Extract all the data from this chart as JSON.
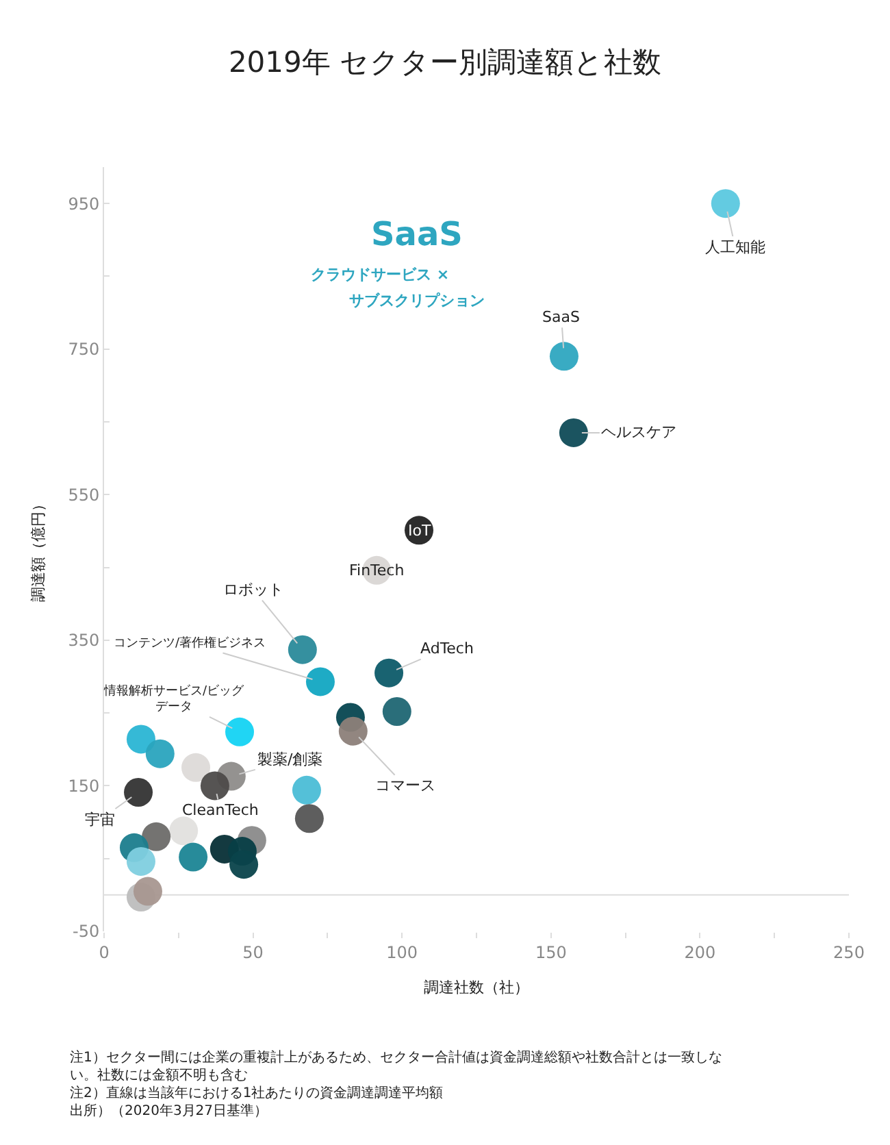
{
  "chart_data": {
    "type": "scatter",
    "title": "2019年 セクター別調達額と社数",
    "xlabel": "調達社数（社）",
    "ylabel": "調達額（億円）",
    "x": [
      208.6,
      154.4,
      157.6,
      105.7,
      91.5,
      66.6,
      72.6,
      95.6,
      98.3,
      82.7,
      83.6,
      45.5,
      12.4,
      18.8,
      30.8,
      42.7,
      37.2,
      68,
      11.5,
      68.9,
      26.7,
      17.5,
      49.6,
      10.1,
      40.4,
      46.4,
      29.9,
      12.4,
      46.9,
      14.7,
      12.4
    ],
    "values": [
      950,
      740,
      635,
      501,
      446,
      337,
      293,
      305,
      252,
      244,
      225,
      224,
      214,
      194,
      175,
      163,
      150,
      144,
      141,
      105,
      88,
      80,
      75,
      65,
      63,
      60,
      52,
      46,
      42,
      5,
      -3
    ],
    "colors": [
      "#5bc8df",
      "#2ea6c0",
      "#0f4b57",
      "#222222",
      "#d9d6d4",
      "#2a8a9a",
      "#12a6c2",
      "#0d5b69",
      "#1f6673",
      "#064650",
      "#8c7f79",
      "#14d3f3",
      "#2ab5d4",
      "#2aa4be",
      "#dddad8",
      "#8e8c8a",
      "#4d4b4a",
      "#4bbdd6",
      "#333333",
      "#555555",
      "#e2e0de",
      "#6d6b69",
      "#8a8a8a",
      "#1b7d8d",
      "#072f36",
      "#073e46",
      "#1b8595",
      "#7fcfdf",
      "#0a434b",
      "#a89790",
      "#bdbdbd"
    ],
    "marker": "circle",
    "grid": false,
    "xlim": [
      0,
      250
    ],
    "ylim": [
      -50,
      1000
    ],
    "xticks": [
      0,
      {
        "value": 25,
        "label": null
      },
      50,
      {
        "value": 75,
        "label": null
      },
      100,
      {
        "value": 125,
        "label": null
      },
      150,
      {
        "value": 175,
        "label": null
      },
      200,
      {
        "value": 225,
        "label": null
      },
      250
    ],
    "yticks": [
      -50,
      {
        "value": 50,
        "label": null
      },
      150,
      {
        "value": 250,
        "label": null
      },
      350,
      {
        "value": 450,
        "label": null
      },
      550,
      {
        "value": 650,
        "label": null
      },
      750,
      {
        "value": 850,
        "label": null
      },
      950
    ],
    "ref_lines": [
      {
        "axis": "y",
        "value": 0,
        "label": null,
        "color": "#dddddd"
      }
    ],
    "annotations": [
      {
        "text": "人工知能",
        "x": 208.6,
        "y": 950
      },
      {
        "text": "SaaS",
        "x": 154.4,
        "y": 740
      },
      {
        "text": "ヘルスケア",
        "x": 157.6,
        "y": 635
      },
      {
        "text": "IoT",
        "x": 105.7,
        "y": 501
      },
      {
        "text": "FinTech",
        "x": 91.5,
        "y": 446
      },
      {
        "text": "ロボット",
        "x": 66.6,
        "y": 337
      },
      {
        "text": "コンテンツ/著作権ビジネス",
        "x": 72.6,
        "y": 293
      },
      {
        "text": "AdTech",
        "x": 95.6,
        "y": 305
      },
      {
        "text": "コマース",
        "x": 83.6,
        "y": 225
      },
      {
        "text": "情報解析サービス/ビッグデータ",
        "x": 45.5,
        "y": 224
      },
      {
        "text": "製薬/創薬",
        "x": 42.7,
        "y": 163
      },
      {
        "text": "CleanTech",
        "x": 37.2,
        "y": 150
      },
      {
        "text": "宇宙",
        "x": 11.5,
        "y": 141
      },
      "SaaS",
      "クラウドサービス ×",
      "サブスクリプション",
      "注1）セクター間には企業の重複計上があるため、セクター合計値は資金調達総額や社数合計とは一致しない。社数には金額不明も含む",
      "注2）直線は当該年における1社あたりの資金調達調達平均額",
      "出所）（2020年3月27日基準）"
    ]
  }
}
